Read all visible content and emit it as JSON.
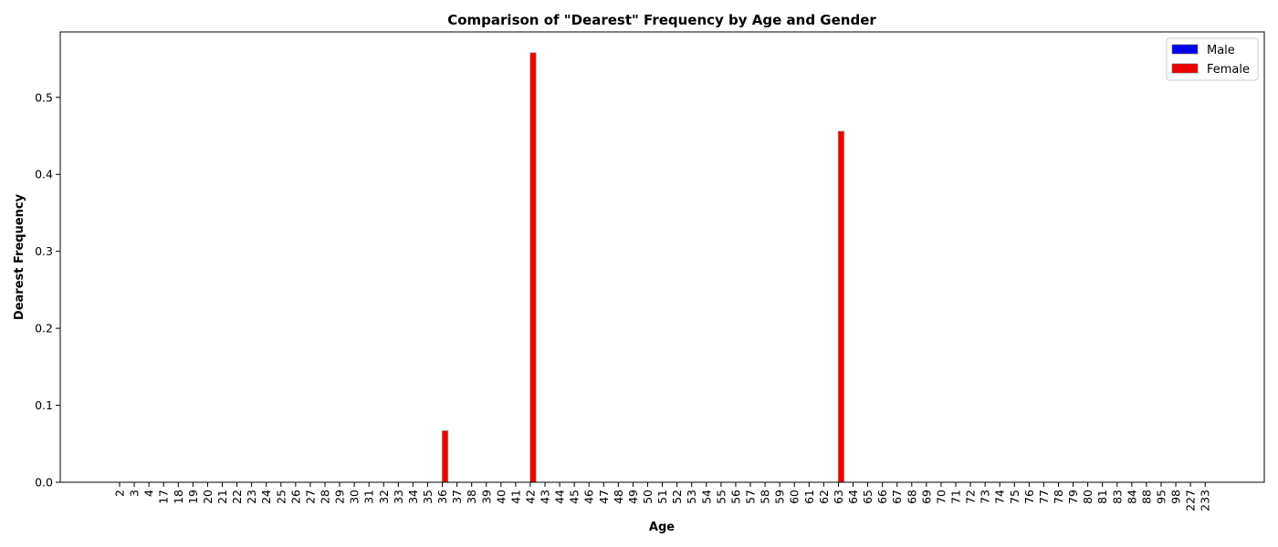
{
  "chart_data": {
    "type": "bar",
    "title": "Comparison of \"Dearest\" Frequency by Age and Gender",
    "xlabel": "Age",
    "ylabel": "Dearest Frequency",
    "ylim": [
      0,
      0.585
    ],
    "yticks": [
      "0.0",
      "0.1",
      "0.2",
      "0.3",
      "0.4",
      "0.5"
    ],
    "ytick_values": [
      0,
      0.1,
      0.2,
      0.3,
      0.4,
      0.5
    ],
    "grid": false,
    "legend_position": "top-right",
    "categories": [
      "2",
      "3",
      "4",
      "17",
      "18",
      "19",
      "20",
      "21",
      "22",
      "23",
      "24",
      "25",
      "26",
      "27",
      "28",
      "29",
      "30",
      "31",
      "32",
      "33",
      "34",
      "35",
      "36",
      "37",
      "38",
      "39",
      "40",
      "41",
      "42",
      "43",
      "44",
      "45",
      "46",
      "47",
      "48",
      "49",
      "50",
      "51",
      "52",
      "53",
      "54",
      "55",
      "56",
      "57",
      "58",
      "59",
      "60",
      "61",
      "62",
      "63",
      "64",
      "65",
      "66",
      "67",
      "68",
      "69",
      "70",
      "71",
      "72",
      "73",
      "74",
      "75",
      "76",
      "77",
      "78",
      "79",
      "80",
      "81",
      "83",
      "84",
      "88",
      "95",
      "98",
      "227",
      "233"
    ],
    "series": [
      {
        "name": "Male",
        "color": "#0000ee",
        "values": [
          0,
          0,
          0,
          0,
          0,
          0,
          0,
          0,
          0,
          0,
          0,
          0,
          0,
          0,
          0,
          0,
          0,
          0,
          0,
          0,
          0,
          0,
          0,
          0,
          0,
          0,
          0,
          0,
          0,
          0,
          0,
          0,
          0,
          0,
          0,
          0,
          0,
          0,
          0,
          0,
          0,
          0,
          0,
          0,
          0,
          0,
          0,
          0,
          0,
          0,
          0,
          0,
          0,
          0,
          0,
          0,
          0,
          0,
          0,
          0,
          0,
          0,
          0,
          0,
          0,
          0,
          0,
          0,
          0,
          0,
          0,
          0,
          0,
          0,
          0
        ]
      },
      {
        "name": "Female",
        "color": "#ee0000",
        "values": [
          0,
          0,
          0,
          0,
          0,
          0,
          0,
          0,
          0,
          0,
          0,
          0,
          0,
          0,
          0,
          0,
          0,
          0,
          0,
          0,
          0,
          0,
          0.067,
          0,
          0,
          0,
          0,
          0,
          0.558,
          0,
          0,
          0,
          0,
          0,
          0,
          0,
          0,
          0,
          0,
          0,
          0,
          0,
          0,
          0,
          0,
          0,
          0,
          0,
          0,
          0.456,
          0,
          0,
          0,
          0,
          0,
          0,
          0,
          0,
          0,
          0,
          0,
          0,
          0,
          0,
          0,
          0,
          0,
          0,
          0,
          0,
          0,
          0,
          0,
          0,
          0
        ]
      }
    ]
  }
}
